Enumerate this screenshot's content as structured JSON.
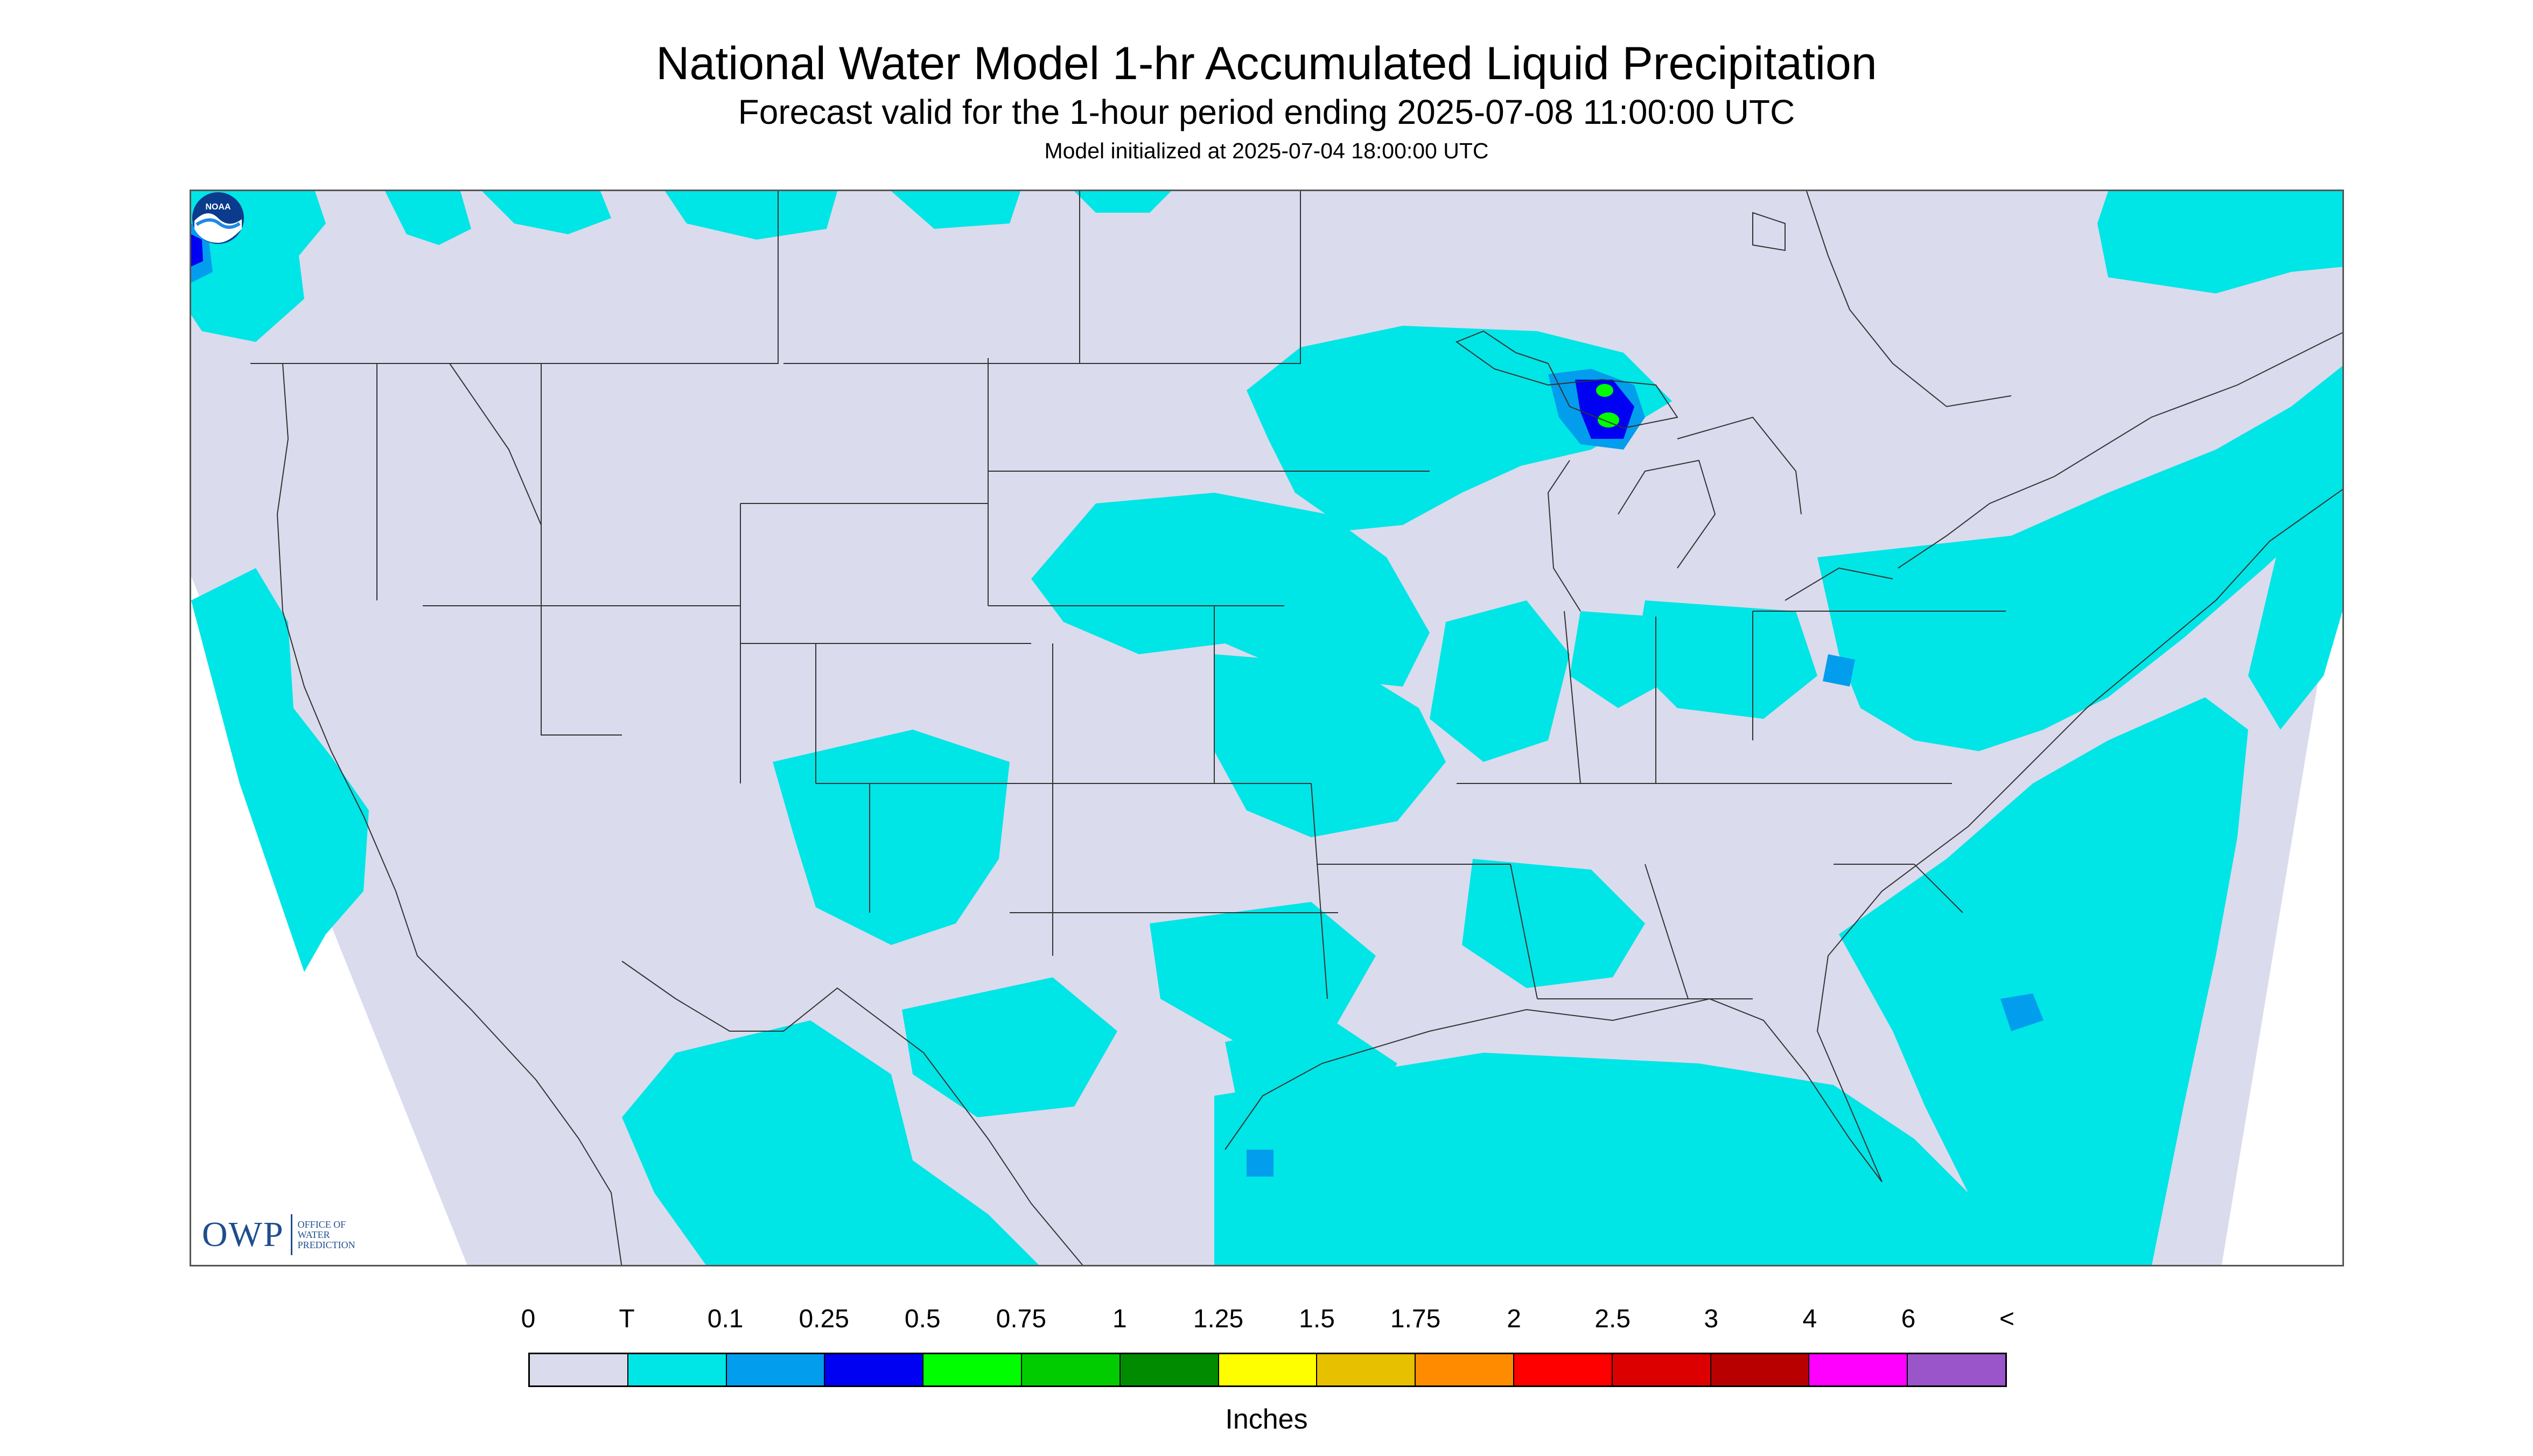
{
  "header": {
    "title": "National Water Model 1-hr Accumulated Liquid Precipitation",
    "subtitle": "Forecast valid for the 1-hour period ending 2025-07-08 11:00:00 UTC",
    "init": "Model initialized at 2025-07-04 18:00:00 UTC"
  },
  "map": {
    "background_color": "#dadbed",
    "outside_color": "#ffffff",
    "border_color": "#333333",
    "icons": [
      "owp-logo",
      "noaa-logo"
    ]
  },
  "logos": {
    "owp_mark": "OWP",
    "owp_text": "OFFICE OF\nWATER\nPREDICTION",
    "noaa_text": "NOAA"
  },
  "legend": {
    "units": "Inches",
    "labels": [
      "0",
      "T",
      "0.1",
      "0.25",
      "0.5",
      "0.75",
      "1",
      "1.25",
      "1.5",
      "1.75",
      "2",
      "2.5",
      "3",
      "4",
      "6",
      "<"
    ],
    "colors": [
      "#dadbed",
      "#00e5e6",
      "#029ded",
      "#0000f3",
      "#00fe00",
      "#00cc00",
      "#008b00",
      "#fffe00",
      "#e7c000",
      "#ff8c00",
      "#ff0000",
      "#dc0000",
      "#b90000",
      "#ff00ff",
      "#9955c9"
    ]
  }
}
